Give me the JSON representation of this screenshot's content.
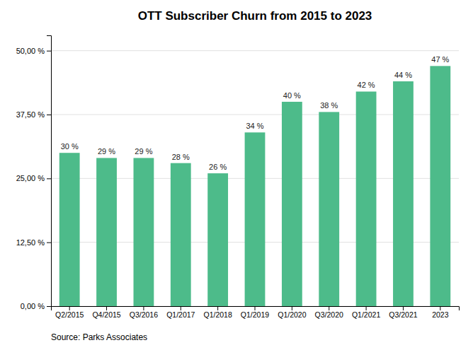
{
  "chart_data": {
    "type": "bar",
    "title": "OTT Subscriber Churn from 2015 to 2023",
    "categories": [
      "Q2/2015",
      "Q4/2015",
      "Q3/2016",
      "Q1/2017",
      "Q1/2018",
      "Q1/2019",
      "Q1/2020",
      "Q3/2020",
      "Q1/2021",
      "Q3/2021",
      "2023"
    ],
    "values": [
      30,
      29,
      29,
      28,
      26,
      34,
      40,
      38,
      42,
      44,
      47
    ],
    "value_labels": [
      "30 %",
      "29 %",
      "29 %",
      "28 %",
      "26 %",
      "34 %",
      "40 %",
      "38 %",
      "42 %",
      "44 %",
      "47 %"
    ],
    "data_labels": true,
    "color": "#4dbb8a",
    "ylim": [
      0,
      53
    ],
    "yticks": [
      {
        "value": 0,
        "label": "0,00 %"
      },
      {
        "value": 12.5,
        "label": "12,50 %"
      },
      {
        "value": 25,
        "label": "25,00 %"
      },
      {
        "value": 37.5,
        "label": "37,50 %"
      },
      {
        "value": 50,
        "label": "50,00 %"
      }
    ],
    "grid": true,
    "annotations": [
      "Source: Parks Associates"
    ]
  }
}
